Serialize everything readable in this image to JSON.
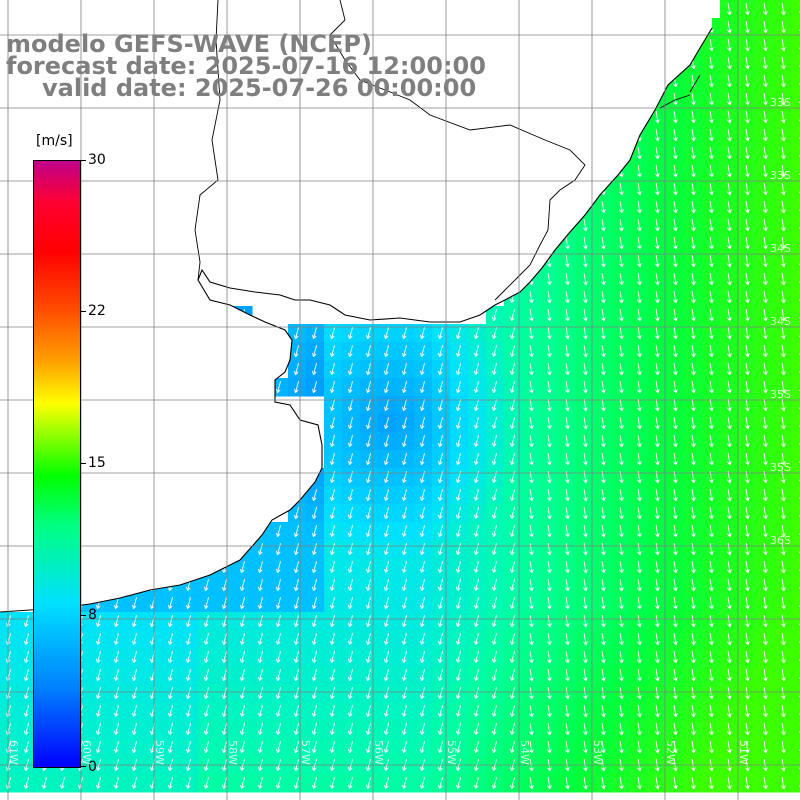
{
  "header": {
    "line1": "modelo GEFS-WAVE (NCEP)",
    "line2": "forecast date: 2025-07-16 12:00:00",
    "line3": "valid date: 2025-07-26 00:00:00"
  },
  "colorbar": {
    "unit": "[m/s]",
    "ticks": [
      "30",
      "22",
      "15",
      "8",
      "0"
    ],
    "tick_values": [
      30,
      22,
      15,
      8,
      0
    ],
    "range": [
      0,
      30
    ],
    "colors": [
      "#0000ff",
      "#0080ff",
      "#00e0ff",
      "#00ff80",
      "#00ff00",
      "#80ff00",
      "#ffff00",
      "#ffa000",
      "#ff5000",
      "#ff0000",
      "#c0008a"
    ]
  },
  "lon_labels": [
    "61W",
    "60W",
    "59W",
    "58W",
    "57W",
    "56W",
    "55W",
    "54W",
    "53W",
    "52W",
    "51W",
    "50W"
  ],
  "lat_labels": [
    "33S",
    "33S",
    "34S",
    "34S",
    "35S",
    "35S",
    "36S"
  ],
  "colors": {
    "land": "#ffffff",
    "coast": "#000000",
    "grid": "#808080",
    "arrow": "#ffffff"
  }
}
